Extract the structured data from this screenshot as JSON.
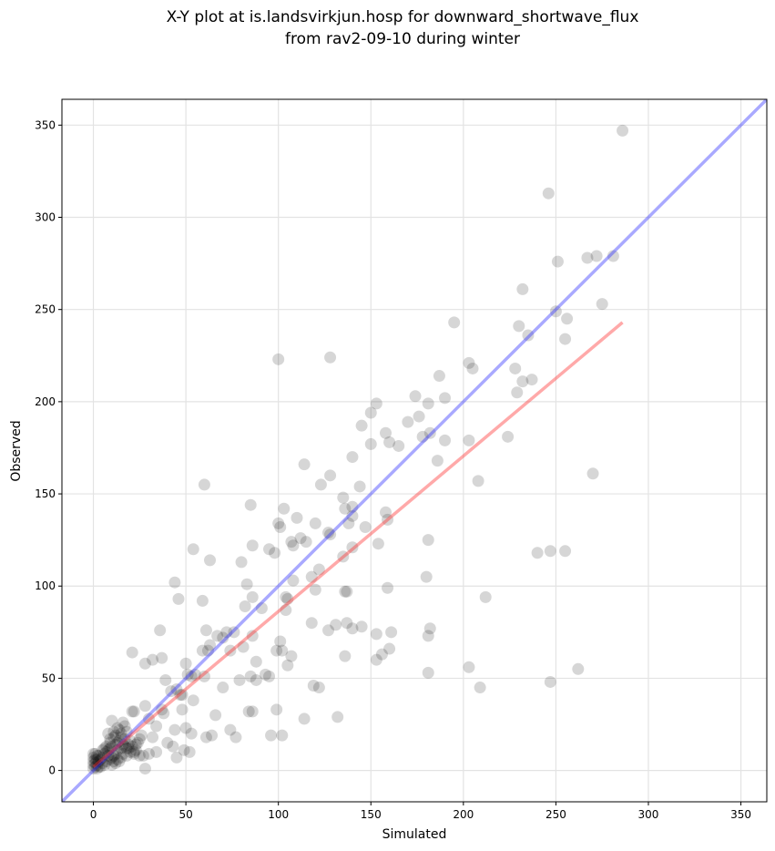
{
  "chart_data": {
    "type": "scatter",
    "title_line1": "X-Y plot at is.landsvirkjun.hosp for downward_shortwave_flux",
    "title_line2": "from rav2-09-10 during winter",
    "xlabel": "Simulated",
    "ylabel": "Observed",
    "xlim": [
      -17,
      364
    ],
    "ylim": [
      -17,
      364
    ],
    "xticks": [
      0,
      50,
      100,
      150,
      200,
      250,
      300,
      350
    ],
    "yticks": [
      0,
      50,
      100,
      150,
      200,
      250,
      300,
      350
    ],
    "grid": true,
    "point_color": "#000000",
    "point_alpha": 0.16,
    "one_to_one_line": {
      "color": "#3333ff",
      "x": [
        -17,
        364
      ],
      "y": [
        -17,
        364
      ]
    },
    "regression_line": {
      "color": "#ff3333",
      "x": [
        0,
        286
      ],
      "y": [
        2,
        243
      ]
    },
    "points": [
      [
        286,
        347
      ],
      [
        246,
        313
      ],
      [
        251,
        276
      ],
      [
        232,
        261
      ],
      [
        267,
        278
      ],
      [
        272,
        279
      ],
      [
        281,
        279
      ],
      [
        275,
        253
      ],
      [
        250,
        249
      ],
      [
        256,
        245
      ],
      [
        230,
        241
      ],
      [
        235,
        236
      ],
      [
        255,
        234
      ],
      [
        195,
        243
      ],
      [
        203,
        221
      ],
      [
        205,
        218
      ],
      [
        228,
        218
      ],
      [
        237,
        212
      ],
      [
        232,
        211
      ],
      [
        229,
        205
      ],
      [
        187,
        214
      ],
      [
        190,
        202
      ],
      [
        174,
        203
      ],
      [
        176,
        192
      ],
      [
        178,
        181
      ],
      [
        182,
        183
      ],
      [
        186,
        168
      ],
      [
        190,
        179
      ],
      [
        203,
        179
      ],
      [
        208,
        157
      ],
      [
        224,
        181
      ],
      [
        270,
        161
      ],
      [
        181,
        199
      ],
      [
        153,
        199
      ],
      [
        150,
        194
      ],
      [
        145,
        187
      ],
      [
        158,
        183
      ],
      [
        170,
        189
      ],
      [
        165,
        176
      ],
      [
        160,
        178
      ],
      [
        150,
        177
      ],
      [
        140,
        170
      ],
      [
        100,
        223
      ],
      [
        128,
        224
      ],
      [
        114,
        166
      ],
      [
        128,
        160
      ],
      [
        123,
        155
      ],
      [
        135,
        148
      ],
      [
        140,
        143
      ],
      [
        144,
        154
      ],
      [
        136,
        142
      ],
      [
        140,
        138
      ],
      [
        138,
        134
      ],
      [
        147,
        132
      ],
      [
        158,
        140
      ],
      [
        159,
        136
      ],
      [
        154,
        123
      ],
      [
        140,
        121
      ],
      [
        135,
        116
      ],
      [
        103,
        142
      ],
      [
        110,
        137
      ],
      [
        100,
        134
      ],
      [
        101,
        132
      ],
      [
        107,
        124
      ],
      [
        112,
        126
      ],
      [
        115,
        124
      ],
      [
        108,
        122
      ],
      [
        120,
        134
      ],
      [
        127,
        129
      ],
      [
        128,
        128
      ],
      [
        122,
        109
      ],
      [
        118,
        105
      ],
      [
        120,
        98
      ],
      [
        108,
        103
      ],
      [
        104,
        94
      ],
      [
        105,
        93
      ],
      [
        104,
        87
      ],
      [
        99,
        65
      ],
      [
        101,
        70
      ],
      [
        102,
        65
      ],
      [
        105,
        57
      ],
      [
        107,
        62
      ],
      [
        118,
        80
      ],
      [
        127,
        76
      ],
      [
        131,
        79
      ],
      [
        137,
        80
      ],
      [
        140,
        77
      ],
      [
        145,
        78
      ],
      [
        137,
        97
      ],
      [
        136,
        97
      ],
      [
        180,
        105
      ],
      [
        181,
        125
      ],
      [
        159,
        99
      ],
      [
        153,
        74
      ],
      [
        156,
        63
      ],
      [
        153,
        60
      ],
      [
        160,
        66
      ],
      [
        161,
        75
      ],
      [
        182,
        77
      ],
      [
        181,
        73
      ],
      [
        181,
        53
      ],
      [
        119,
        46
      ],
      [
        122,
        45
      ],
      [
        114,
        28
      ],
      [
        132,
        29
      ],
      [
        136,
        62
      ],
      [
        203,
        56
      ],
      [
        209,
        45
      ],
      [
        212,
        94
      ],
      [
        240,
        118
      ],
      [
        247,
        119
      ],
      [
        255,
        119
      ],
      [
        247,
        48
      ],
      [
        262,
        55
      ],
      [
        60,
        155
      ],
      [
        85,
        144
      ],
      [
        95,
        120
      ],
      [
        98,
        118
      ],
      [
        86,
        122
      ],
      [
        80,
        113
      ],
      [
        83,
        101
      ],
      [
        82,
        89
      ],
      [
        86,
        94
      ],
      [
        91,
        88
      ],
      [
        95,
        51
      ],
      [
        93,
        52
      ],
      [
        99,
        33
      ],
      [
        96,
        19
      ],
      [
        102,
        19
      ],
      [
        88,
        49
      ],
      [
        88,
        59
      ],
      [
        85,
        51
      ],
      [
        86,
        32
      ],
      [
        84,
        32
      ],
      [
        79,
        49
      ],
      [
        81,
        67
      ],
      [
        86,
        73
      ],
      [
        72,
        75
      ],
      [
        70,
        72
      ],
      [
        74,
        65
      ],
      [
        76,
        75
      ],
      [
        67,
        73
      ],
      [
        63,
        68
      ],
      [
        61,
        76
      ],
      [
        59,
        65
      ],
      [
        62,
        65
      ],
      [
        55,
        52
      ],
      [
        53,
        51
      ],
      [
        51,
        52
      ],
      [
        54,
        38
      ],
      [
        50,
        58
      ],
      [
        48,
        41
      ],
      [
        47,
        41
      ],
      [
        46,
        93
      ],
      [
        44,
        102
      ],
      [
        54,
        120
      ],
      [
        63,
        114
      ],
      [
        59,
        92
      ],
      [
        36,
        76
      ],
      [
        39,
        49
      ],
      [
        45,
        44
      ],
      [
        42,
        43
      ],
      [
        48,
        33
      ],
      [
        44,
        22
      ],
      [
        45,
        7
      ],
      [
        50,
        23
      ],
      [
        53,
        20
      ],
      [
        49,
        11
      ],
      [
        52,
        10
      ],
      [
        64,
        19
      ],
      [
        61,
        18
      ],
      [
        66,
        30
      ],
      [
        70,
        45
      ],
      [
        74,
        22
      ],
      [
        77,
        18
      ],
      [
        60,
        51
      ],
      [
        37,
        61
      ],
      [
        32,
        60
      ],
      [
        28,
        58
      ],
      [
        21,
        64
      ],
      [
        21,
        32
      ],
      [
        22,
        32
      ],
      [
        28,
        35
      ],
      [
        30,
        28
      ],
      [
        32,
        18
      ],
      [
        34,
        24
      ],
      [
        37,
        33
      ],
      [
        38,
        31
      ],
      [
        40,
        15
      ],
      [
        43,
        13
      ],
      [
        34,
        10
      ],
      [
        30,
        9
      ],
      [
        28,
        1
      ],
      [
        27,
        8
      ],
      [
        10,
        27
      ],
      [
        8,
        20
      ],
      [
        11,
        18
      ],
      [
        9,
        15
      ],
      [
        12,
        19
      ],
      [
        14,
        22
      ],
      [
        15,
        18
      ],
      [
        17,
        24
      ],
      [
        18,
        21
      ],
      [
        20,
        16
      ],
      [
        19,
        14
      ],
      [
        18,
        12
      ],
      [
        22,
        10
      ],
      [
        16,
        9
      ],
      [
        15,
        12
      ],
      [
        13,
        11
      ],
      [
        12,
        9
      ],
      [
        11,
        8
      ],
      [
        10,
        7
      ],
      [
        9,
        6
      ],
      [
        8,
        8
      ],
      [
        7,
        5
      ],
      [
        6,
        9
      ],
      [
        5,
        4
      ],
      [
        4,
        6
      ],
      [
        3,
        5
      ],
      [
        2,
        3
      ],
      [
        1,
        2
      ],
      [
        0,
        1
      ],
      [
        0,
        3
      ],
      [
        0,
        5
      ],
      [
        0,
        7
      ],
      [
        0,
        9
      ],
      [
        1,
        6
      ],
      [
        2,
        8
      ],
      [
        3,
        2
      ],
      [
        1,
        4
      ],
      [
        2,
        1
      ],
      [
        4,
        2
      ],
      [
        5,
        7
      ],
      [
        6,
        3
      ],
      [
        7,
        10
      ],
      [
        8,
        11
      ],
      [
        9,
        12
      ],
      [
        10,
        13
      ],
      [
        12,
        14
      ],
      [
        13,
        15
      ],
      [
        14,
        16
      ],
      [
        16,
        14
      ],
      [
        17,
        13
      ],
      [
        19,
        12
      ],
      [
        21,
        13
      ],
      [
        23,
        11
      ],
      [
        24,
        15
      ],
      [
        25,
        17
      ],
      [
        26,
        19
      ],
      [
        14,
        5
      ],
      [
        12,
        4
      ],
      [
        10,
        3
      ],
      [
        11,
        5
      ],
      [
        13,
        6
      ],
      [
        15,
        7
      ],
      [
        18,
        8
      ],
      [
        20,
        10
      ],
      [
        22,
        9
      ],
      [
        16,
        26
      ],
      [
        13,
        23
      ],
      [
        9,
        17
      ],
      [
        11,
        21
      ],
      [
        15,
        20
      ],
      [
        17,
        17
      ],
      [
        6,
        12
      ],
      [
        7,
        13
      ],
      [
        5,
        11
      ],
      [
        3,
        8
      ],
      [
        2,
        6
      ],
      [
        1,
        9
      ],
      [
        25,
        8
      ],
      [
        23,
        14
      ]
    ]
  }
}
